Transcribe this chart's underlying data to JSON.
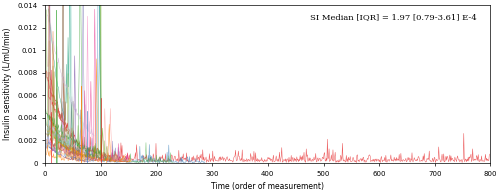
{
  "annotation": "SI Median [IQR] = 1.97 [0.79-3.61] E-4",
  "xlabel": "Time (order of measurement)",
  "ylabel": "Insulin sensitivity (L/mU/min)",
  "xlim": [
    0,
    800
  ],
  "ylim": [
    0,
    0.014
  ],
  "yticks": [
    0,
    0.002,
    0.004,
    0.006,
    0.008,
    0.01,
    0.012,
    0.014
  ],
  "xticks": [
    0,
    100,
    200,
    300,
    400,
    500,
    600,
    700,
    800
  ],
  "n_patients": 25,
  "seed": 12345,
  "background_color": "#ffffff",
  "colors": [
    "#e41a1c",
    "#377eb8",
    "#4daf4a",
    "#984ea3",
    "#ff7f00",
    "#a65628",
    "#f781bf",
    "#555555",
    "#1b9e77",
    "#d95f02",
    "#7570b3",
    "#e7298a",
    "#66a61e",
    "#e6ab02",
    "#a6761d",
    "#33a02c",
    "#fb9a99",
    "#e31a1c",
    "#fdbf6f",
    "#ff7f00",
    "#cab2d6",
    "#6a3d9a",
    "#b15928",
    "#8dd3c7",
    "#bebada"
  ],
  "median_si": 0.000197,
  "iqr_low": 7.9e-05,
  "iqr_high": 0.000361
}
